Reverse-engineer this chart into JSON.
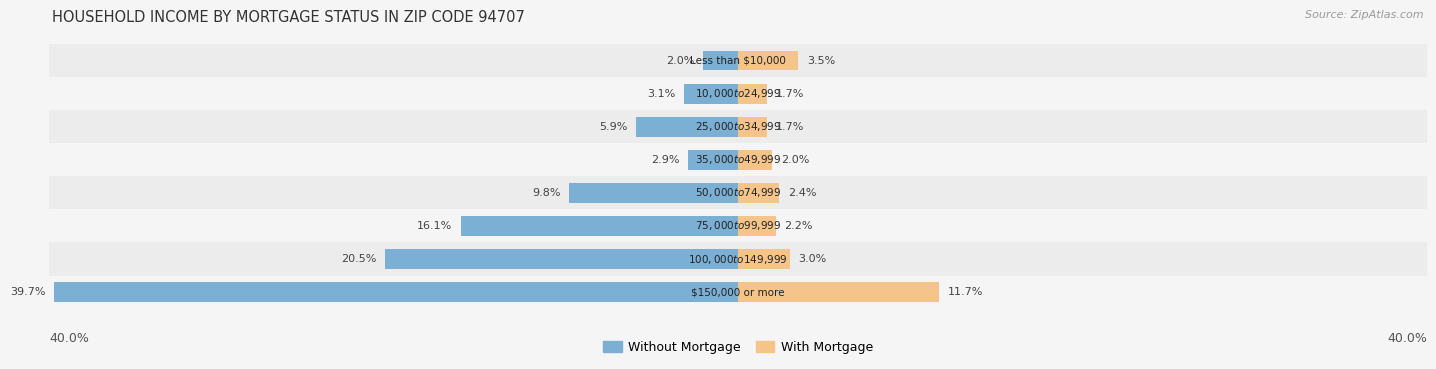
{
  "title": "HOUSEHOLD INCOME BY MORTGAGE STATUS IN ZIP CODE 94707",
  "source": "Source: ZipAtlas.com",
  "categories": [
    "Less than $10,000",
    "$10,000 to $24,999",
    "$25,000 to $34,999",
    "$35,000 to $49,999",
    "$50,000 to $74,999",
    "$75,000 to $99,999",
    "$100,000 to $149,999",
    "$150,000 or more"
  ],
  "without_mortgage": [
    2.0,
    3.1,
    5.9,
    2.9,
    9.8,
    16.1,
    20.5,
    39.7
  ],
  "with_mortgage": [
    3.5,
    1.7,
    1.7,
    2.0,
    2.4,
    2.2,
    3.0,
    11.7
  ],
  "color_without": "#7BAFD4",
  "color_with": "#F5C48A",
  "axis_max": 40.0,
  "legend_without": "Without Mortgage",
  "legend_with": "With Mortgage",
  "title_fontsize": 10.5,
  "source_fontsize": 8,
  "label_fontsize": 8,
  "cat_fontsize": 7.5,
  "bar_height": 0.6,
  "row_colors": [
    "#ececec",
    "#f5f5f5"
  ],
  "bg_color": "#f5f5f5"
}
